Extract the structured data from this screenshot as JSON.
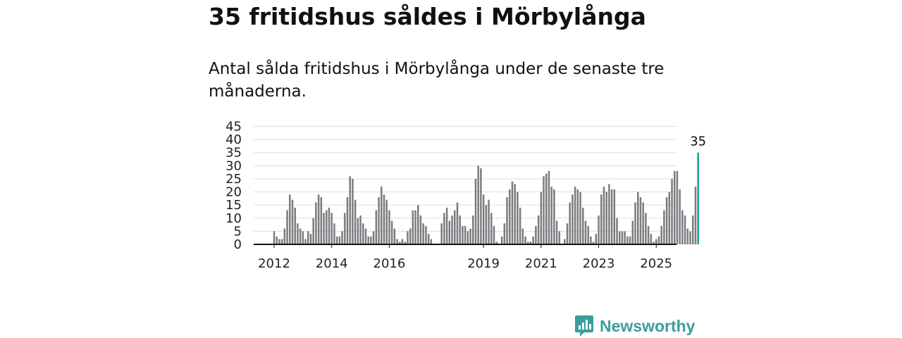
{
  "header": {
    "title": "35 fritidshus såldes i Mörbylånga",
    "subtitle": "Antal sålda fritidshus i Mörbylånga under de senaste tre månaderna."
  },
  "brand": {
    "name": "Newsworthy",
    "icon": "newsworthy-logo-icon"
  },
  "colors": {
    "bar": "#7b7b80",
    "highlight": "#1aa39c",
    "grid": "#dddddd",
    "axis": "#111111",
    "brand": "#3a9e9a"
  },
  "chart_data": {
    "type": "bar",
    "title": "",
    "xlabel": "",
    "ylabel": "",
    "ylim": [
      0,
      45
    ],
    "yticks": [
      0,
      5,
      10,
      15,
      20,
      25,
      30,
      35,
      40,
      45
    ],
    "grid": true,
    "x_tick_labels": [
      {
        "label": "2012",
        "index": 0
      },
      {
        "label": "2014",
        "index": 22
      },
      {
        "label": "2016",
        "index": 44
      },
      {
        "label": "2019",
        "index": 80
      },
      {
        "label": "2021",
        "index": 102
      },
      {
        "label": "2023",
        "index": 124
      },
      {
        "label": "2025",
        "index": 146
      }
    ],
    "values": [
      5,
      3,
      2,
      2,
      6,
      13,
      19,
      17,
      14,
      8,
      6,
      5,
      2,
      5,
      4,
      10,
      16,
      19,
      18,
      12,
      13,
      14,
      12,
      8,
      3,
      3,
      5,
      12,
      18,
      26,
      25,
      17,
      10,
      11,
      8,
      6,
      3,
      3,
      5,
      13,
      18,
      22,
      19,
      17,
      13,
      9,
      6,
      2,
      1,
      2,
      1,
      5,
      6,
      13,
      13,
      15,
      11,
      8,
      7,
      4,
      2,
      null,
      null,
      null,
      8,
      12,
      14,
      9,
      11,
      13,
      16,
      11,
      7,
      7,
      5,
      6,
      11,
      25,
      30,
      29,
      19,
      15,
      17,
      12,
      7,
      1,
      0,
      3,
      8,
      18,
      21,
      24,
      23,
      20,
      14,
      6,
      3,
      1,
      1,
      3,
      7,
      11,
      20,
      26,
      27,
      28,
      22,
      21,
      9,
      5,
      0,
      2,
      8,
      16,
      19,
      22,
      21,
      20,
      14,
      9,
      7,
      3,
      1,
      4,
      11,
      19,
      22,
      20,
      23,
      21,
      21,
      10,
      5,
      5,
      5,
      3,
      3,
      9,
      16,
      20,
      18,
      16,
      12,
      7,
      4,
      1,
      2,
      3,
      7,
      13,
      18,
      20,
      25,
      28,
      28,
      21,
      13,
      11,
      6,
      5,
      11,
      22,
      35
    ],
    "highlight_label": "35"
  }
}
